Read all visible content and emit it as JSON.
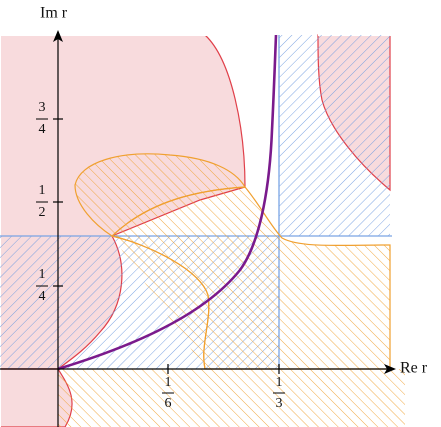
{
  "axes": {
    "x_label": "Re r",
    "y_label": "Im r"
  },
  "ticks": {
    "x": [
      {
        "numerator": "1",
        "denominator": "6"
      },
      {
        "numerator": "1",
        "denominator": "3"
      }
    ],
    "y": [
      {
        "numerator": "1",
        "denominator": "4"
      },
      {
        "numerator": "1",
        "denominator": "2"
      },
      {
        "numerator": "3",
        "denominator": "4"
      }
    ]
  }
}
